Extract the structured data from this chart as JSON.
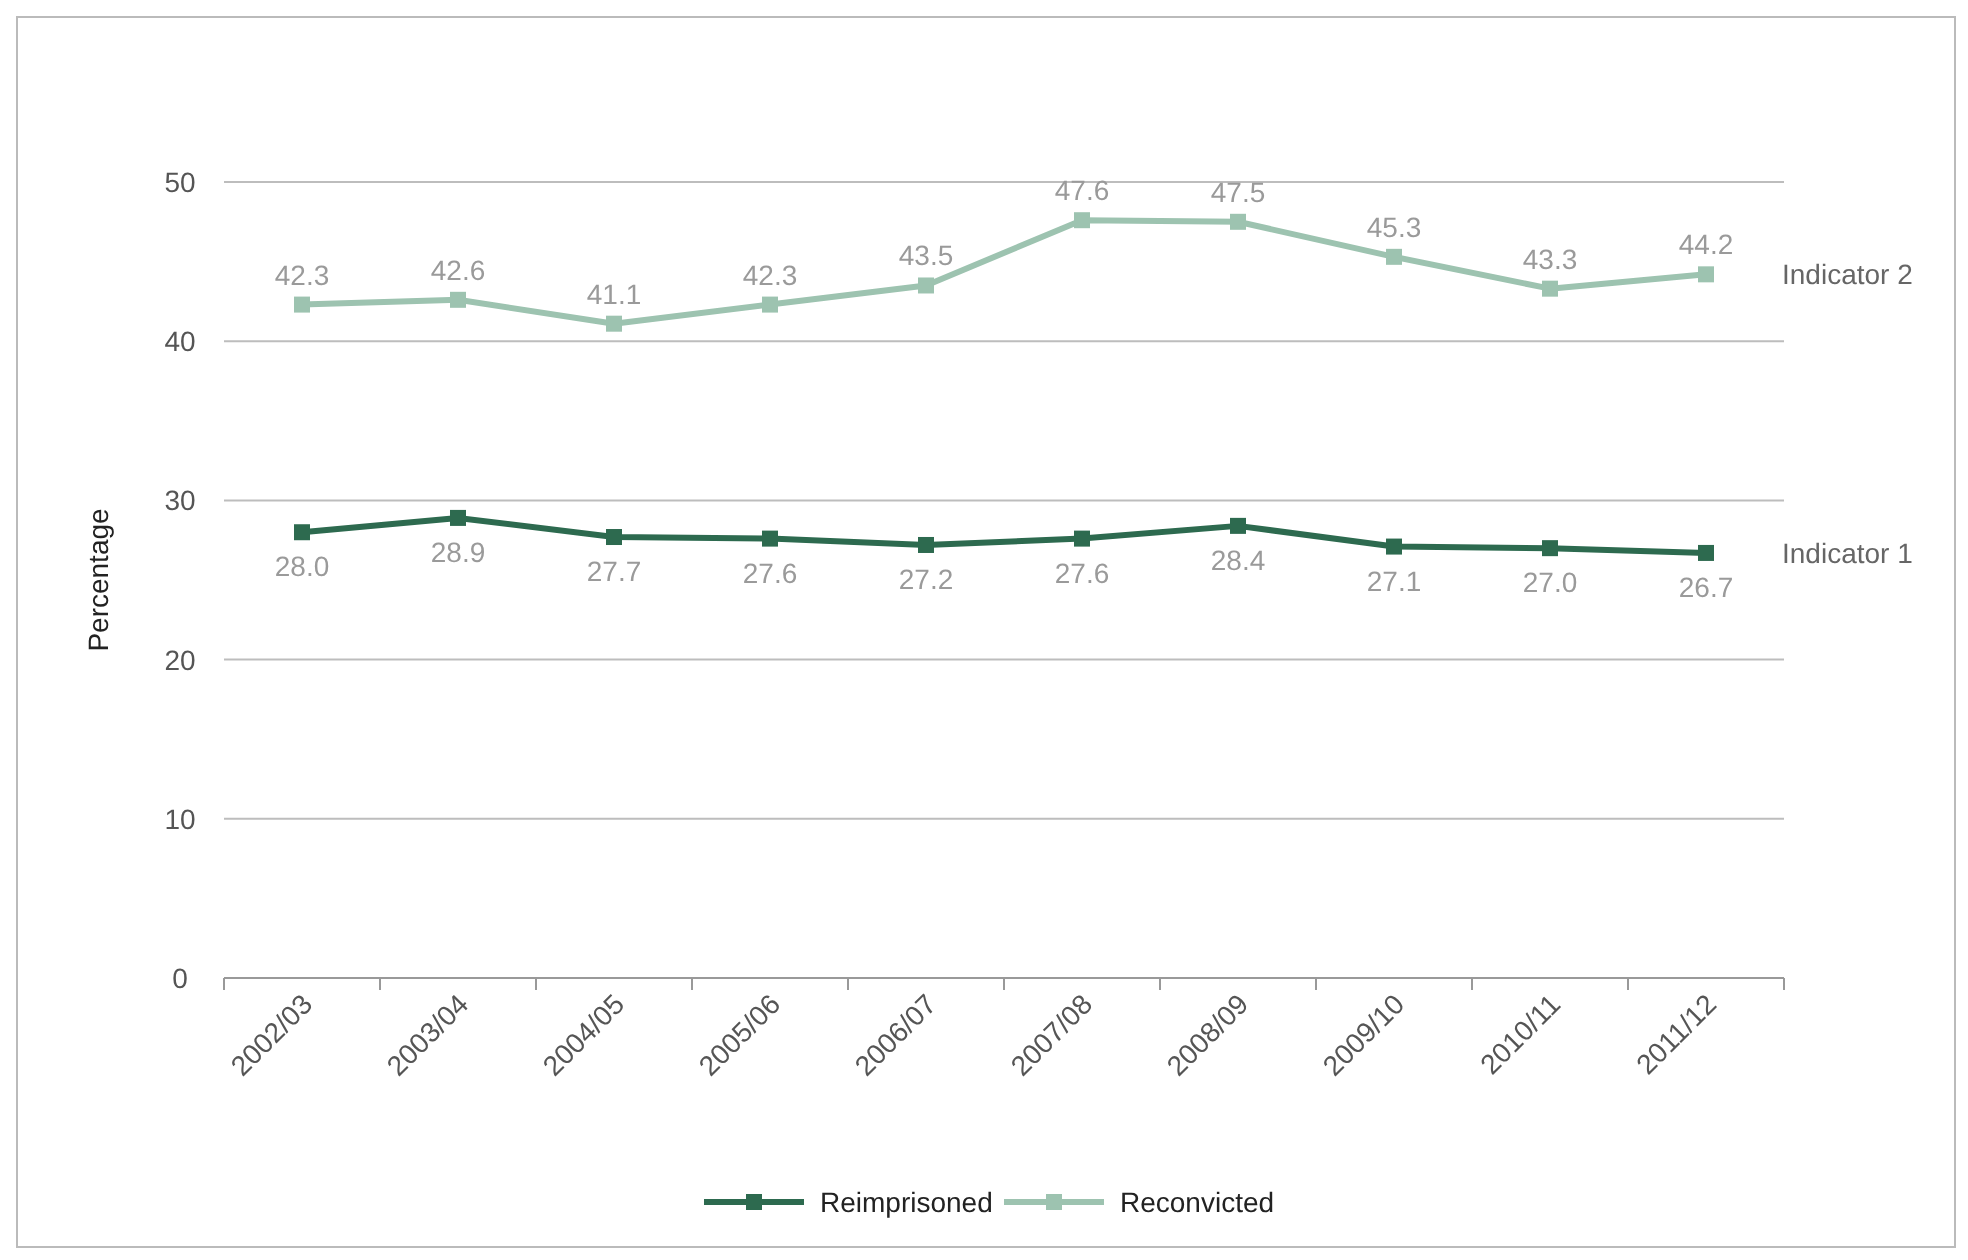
{
  "chart_data": {
    "type": "line",
    "ylabel": "Percentage",
    "categories": [
      "2002/03",
      "2003/04",
      "2004/05",
      "2005/06",
      "2006/07",
      "2007/08",
      "2008/09",
      "2009/10",
      "2010/11",
      "2011/12"
    ],
    "series": [
      {
        "name": "Reimprisoned",
        "color": "#2d6a4f",
        "values": [
          28.0,
          28.9,
          27.7,
          27.6,
          27.2,
          27.6,
          28.4,
          27.1,
          27.0,
          26.7
        ],
        "value_labels": [
          "28.0",
          "28.9",
          "27.7",
          "27.6",
          "27.2",
          "27.6",
          "28.4",
          "27.1",
          "27.0",
          "26.7"
        ]
      },
      {
        "name": "Reconvicted",
        "color": "#9dc3b0",
        "values": [
          42.3,
          42.6,
          41.1,
          42.3,
          43.5,
          47.6,
          47.5,
          45.3,
          43.3,
          44.2
        ],
        "value_labels": [
          "42.3",
          "42.6",
          "41.1",
          "42.3",
          "43.5",
          "47.6",
          "47.5",
          "45.3",
          "43.3",
          "44.2"
        ]
      }
    ],
    "annotations": [
      {
        "text": "Indicator 2",
        "x": "2011/12",
        "y": 44.2
      },
      {
        "text": "Indicator 1",
        "x": "2011/12",
        "y": 26.7
      }
    ],
    "ylim": [
      0,
      50
    ],
    "yticks": [
      0,
      10,
      20,
      30,
      40,
      50
    ],
    "grid": "y",
    "legend": "bottom",
    "marker": "square",
    "line_style": "solid"
  }
}
